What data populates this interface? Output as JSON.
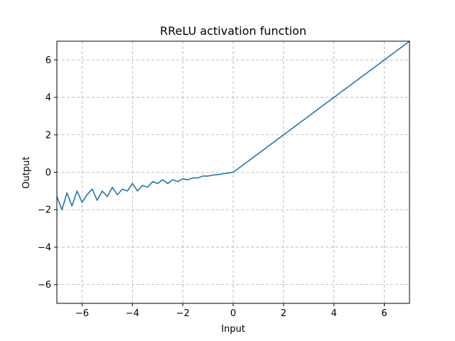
{
  "chart_data": {
    "type": "line",
    "title": "RReLU activation function",
    "xlabel": "Input",
    "ylabel": "Output",
    "xlim": [
      -7,
      7
    ],
    "ylim": [
      -7,
      7
    ],
    "xticks": [
      -6,
      -4,
      -2,
      0,
      2,
      4,
      6
    ],
    "yticks": [
      -6,
      -4,
      -2,
      0,
      2,
      4,
      6
    ],
    "xtick_labels": [
      "−6",
      "−4",
      "−2",
      "0",
      "2",
      "4",
      "6"
    ],
    "ytick_labels": [
      "−6",
      "−4",
      "−2",
      "0",
      "2",
      "4",
      "6"
    ],
    "grid": true,
    "grid_style": "dashed",
    "line_color": "#1f77b4",
    "series": [
      {
        "x": [
          -7.0,
          -6.8,
          -6.6,
          -6.4,
          -6.2,
          -6.0,
          -5.8,
          -5.6,
          -5.4,
          -5.2,
          -5.0,
          -4.8,
          -4.6,
          -4.4,
          -4.2,
          -4.0,
          -3.8,
          -3.6,
          -3.4,
          -3.2,
          -3.0,
          -2.8,
          -2.6,
          -2.4,
          -2.2,
          -2.0,
          -1.8,
          -1.6,
          -1.4,
          -1.2,
          -1.0,
          -0.8,
          -0.6,
          -0.4,
          -0.2,
          0.0,
          7.0
        ],
        "y": [
          -1.3,
          -2.0,
          -1.1,
          -1.8,
          -1.0,
          -1.6,
          -1.2,
          -0.9,
          -1.5,
          -1.0,
          -1.3,
          -0.8,
          -1.2,
          -0.9,
          -1.0,
          -0.6,
          -1.0,
          -0.7,
          -0.8,
          -0.5,
          -0.6,
          -0.4,
          -0.6,
          -0.4,
          -0.5,
          -0.35,
          -0.4,
          -0.3,
          -0.3,
          -0.2,
          -0.2,
          -0.15,
          -0.12,
          -0.08,
          -0.04,
          0.0,
          7.0
        ]
      }
    ]
  }
}
